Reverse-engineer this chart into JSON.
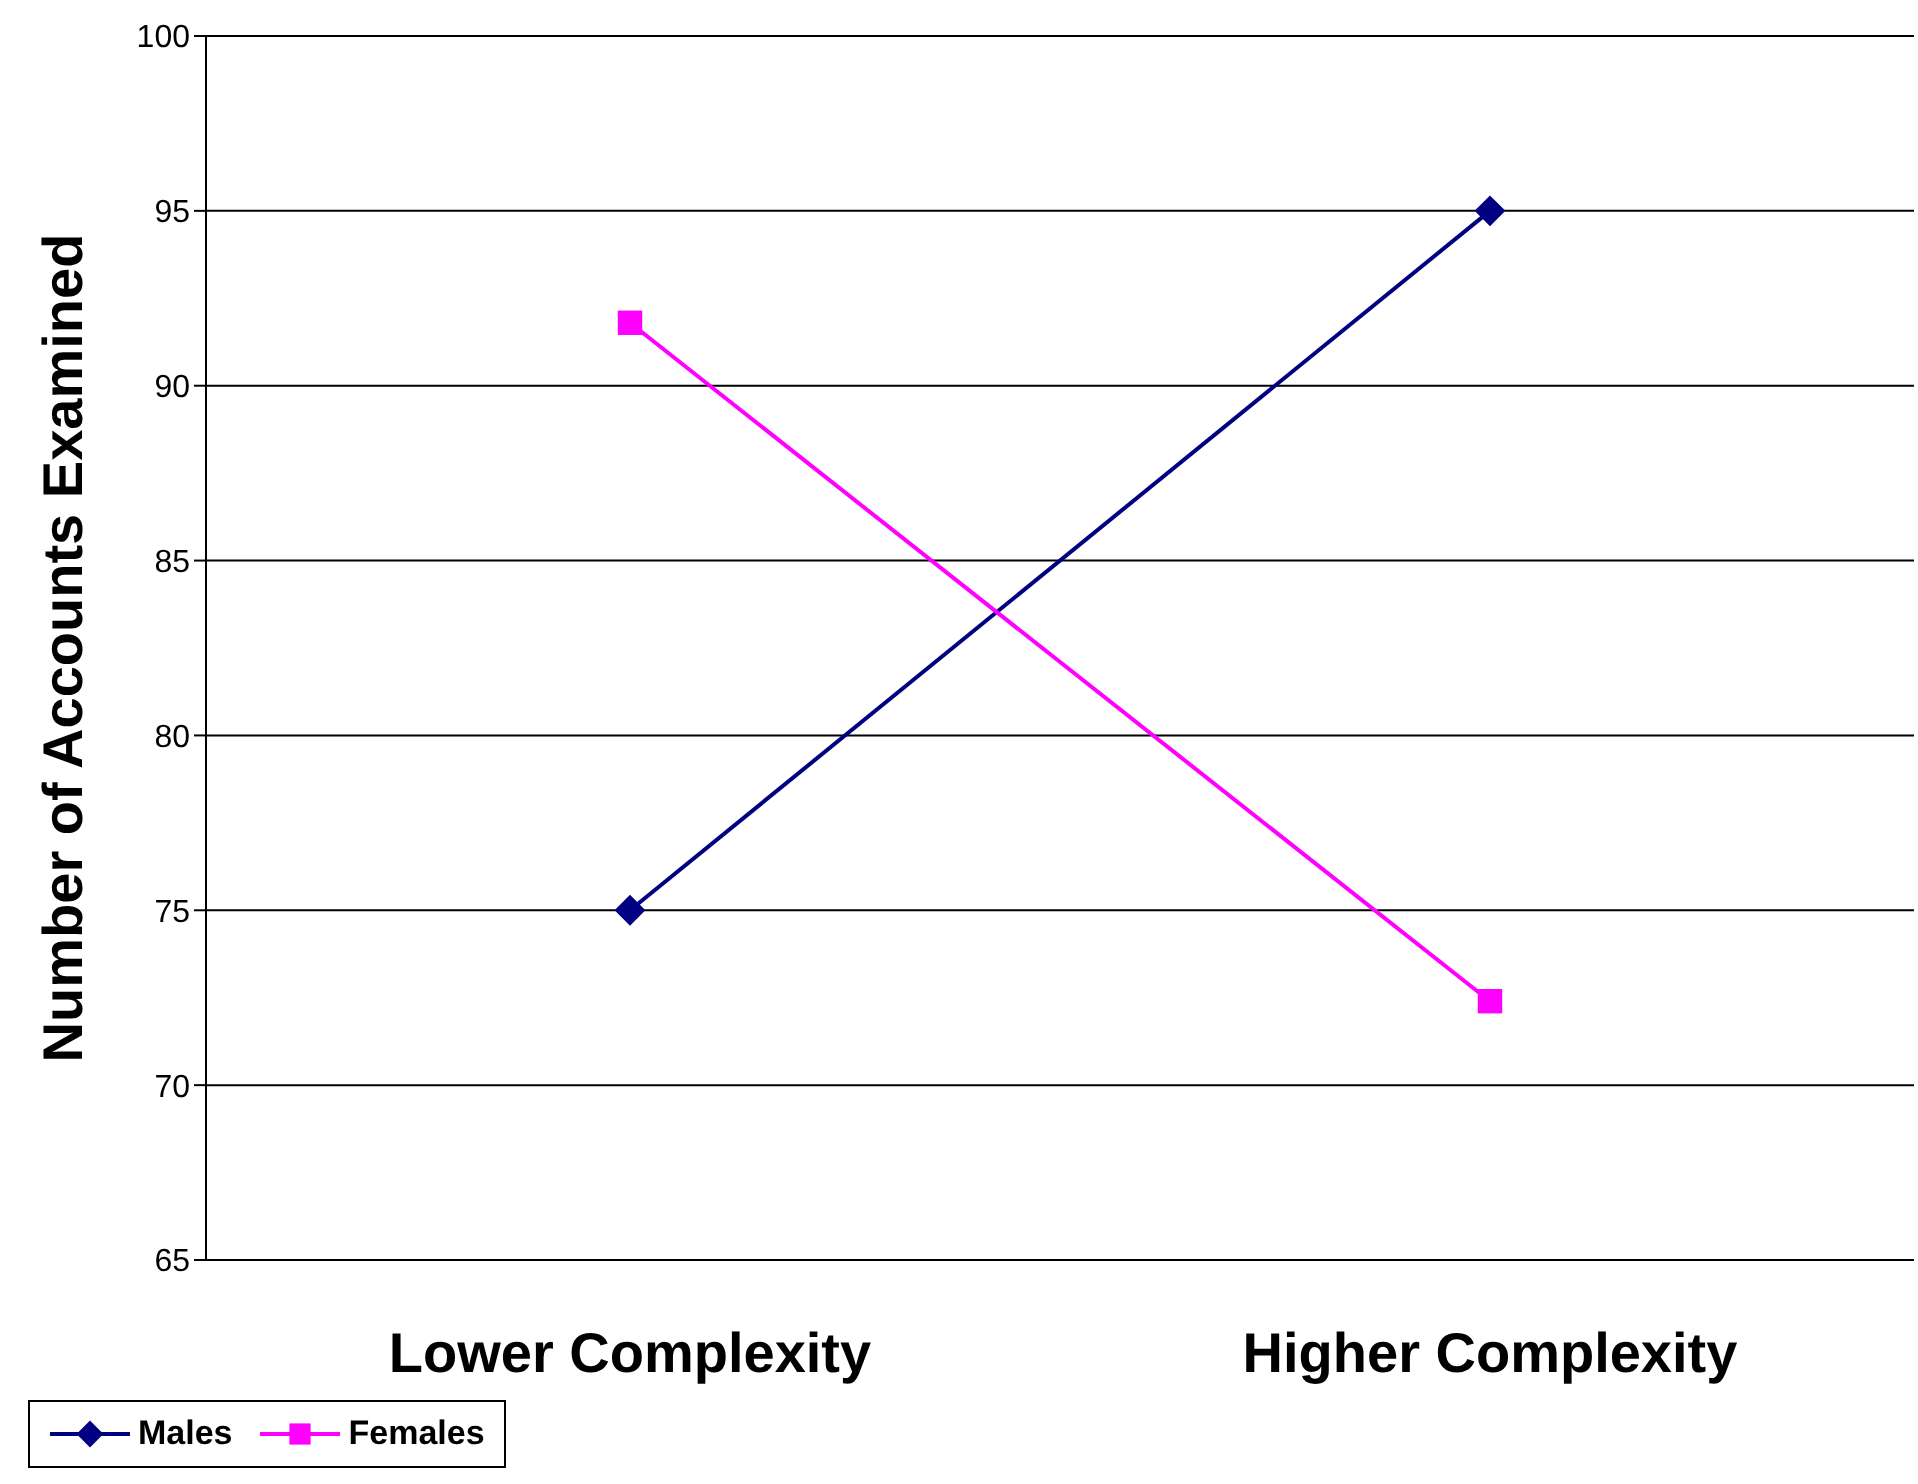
{
  "chart_data": {
    "type": "line",
    "ylabel": "Number of Accounts Examined",
    "categories": [
      "Lower Complexity",
      "Higher Complexity"
    ],
    "series": [
      {
        "name": "Males",
        "color": "#000080",
        "values": [
          75,
          95
        ],
        "marker": "diamond"
      },
      {
        "name": "Females",
        "color": "#ff00ff",
        "values": [
          91.8,
          72.4
        ],
        "marker": "square"
      }
    ],
    "ylim": [
      65,
      100
    ],
    "yticks": [
      65,
      70,
      75,
      80,
      85,
      90,
      95,
      100
    ],
    "grid": "y",
    "legend": "bottom"
  }
}
